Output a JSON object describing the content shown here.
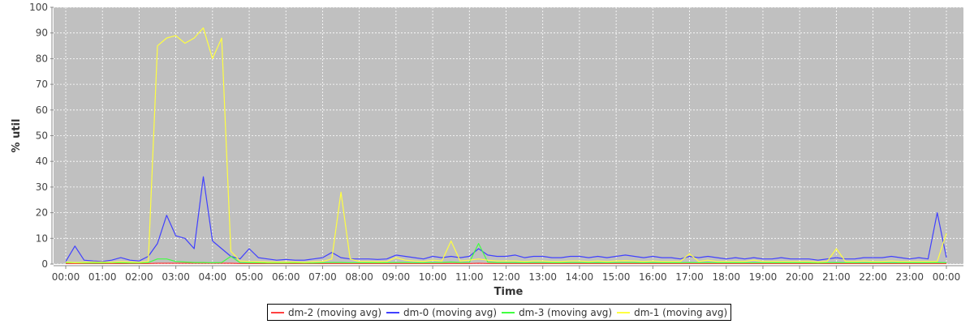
{
  "chart_data": {
    "type": "line",
    "title": "",
    "xlabel": "Time",
    "ylabel": "% util",
    "ylim": [
      0,
      100
    ],
    "yticks": [
      "0",
      "10",
      "20",
      "30",
      "40",
      "50",
      "60",
      "70",
      "80",
      "90",
      "100"
    ],
    "xticks": [
      "00:00",
      "01:00",
      "02:00",
      "03:00",
      "04:00",
      "05:00",
      "06:00",
      "07:00",
      "08:00",
      "09:00",
      "10:00",
      "11:00",
      "12:00",
      "13:00",
      "14:00",
      "15:00",
      "16:00",
      "17:00",
      "18:00",
      "19:00",
      "20:00",
      "21:00",
      "22:00",
      "23:00",
      "00:00"
    ],
    "grid": true,
    "legend_placement": "bottom",
    "x_interval": "15 min, 00:00 to 00:00 (next day)",
    "series": [
      {
        "name": "dm-2 (moving avg)",
        "color": "#ff4040",
        "values": [
          0.2,
          0.2,
          0.2,
          0.2,
          0.2,
          0.2,
          0.2,
          0.2,
          0.2,
          0.2,
          0.3,
          0.3,
          0.3,
          0.3,
          0.3,
          0.3,
          0.3,
          0.3,
          0.3,
          0.2,
          0.2,
          0.2,
          0.2,
          0.2,
          0.2,
          0.2,
          0.2,
          0.2,
          0.2,
          0.2,
          0.2,
          0.2,
          0.2,
          0.2,
          0.2,
          0.2,
          0.2,
          0.2,
          0.2,
          0.2,
          0.2,
          0.2,
          0.2,
          0.2,
          0.2,
          0.3,
          0.2,
          0.2,
          0.2,
          0.2,
          0.2,
          0.2,
          0.2,
          0.2,
          0.2,
          0.2,
          0.2,
          0.2,
          0.2,
          0.2,
          0.2,
          0.2,
          0.2,
          0.2,
          0.2,
          0.2,
          0.2,
          0.2,
          0.2,
          0.2,
          0.2,
          0.2,
          0.2,
          0.2,
          0.2,
          0.2,
          0.2,
          0.2,
          0.2,
          0.2,
          0.2,
          0.2,
          0.2,
          0.2,
          0.2,
          0.2,
          0.2,
          0.2,
          0.2,
          0.2,
          0.2,
          0.2,
          0.2,
          0.2,
          0.2,
          0.2,
          0.2
        ]
      },
      {
        "name": "dm-0 (moving avg)",
        "color": "#4040ff",
        "values": [
          1,
          7,
          1.5,
          1.2,
          1,
          1.5,
          2.5,
          1.5,
          1.2,
          3,
          8,
          19,
          11,
          10,
          6,
          34,
          9,
          6,
          3,
          2,
          6,
          2.5,
          2,
          1.5,
          1.8,
          1.5,
          1.5,
          2,
          2.5,
          4.5,
          2.5,
          2,
          2,
          2,
          1.8,
          2,
          3.5,
          3,
          2.5,
          2,
          3,
          2.5,
          3,
          2.5,
          3,
          6,
          3.5,
          3,
          3,
          3.5,
          2.5,
          3,
          3,
          2.5,
          2.5,
          3,
          3,
          2.5,
          3,
          2.5,
          3,
          3.5,
          3,
          2.5,
          3,
          2.5,
          2.5,
          2,
          3,
          2.5,
          3,
          2.5,
          2,
          2.5,
          2,
          2.5,
          2,
          2,
          2.5,
          2,
          2,
          2,
          1.5,
          2,
          2.5,
          2,
          2,
          2.5,
          2.5,
          2.5,
          3,
          2.5,
          2,
          2.5,
          2,
          20,
          2.5
        ]
      },
      {
        "name": "dm-3 (moving avg)",
        "color": "#40ff40",
        "values": [
          0.5,
          0.5,
          0.4,
          0.4,
          0.4,
          0.5,
          0.5,
          0.4,
          0.4,
          0.6,
          2,
          2,
          1,
          0.8,
          0.6,
          0.6,
          0.5,
          0.6,
          3,
          0.6,
          0.5,
          0.5,
          0.4,
          0.4,
          0.4,
          0.5,
          0.4,
          0.4,
          0.5,
          0.6,
          0.6,
          0.5,
          0.5,
          0.5,
          0.5,
          0.5,
          0.6,
          0.6,
          0.5,
          0.5,
          0.6,
          0.6,
          0.8,
          0.6,
          0.7,
          8,
          0.8,
          0.6,
          0.6,
          0.6,
          0.5,
          0.6,
          0.6,
          0.5,
          0.5,
          0.6,
          0.6,
          0.5,
          0.6,
          0.5,
          0.6,
          0.6,
          0.6,
          0.5,
          0.6,
          0.5,
          0.5,
          0.5,
          0.6,
          0.5,
          0.6,
          0.5,
          0.5,
          0.5,
          0.5,
          0.5,
          0.5,
          0.5,
          0.5,
          0.5,
          0.5,
          0.5,
          0.4,
          0.5,
          0.6,
          0.5,
          0.5,
          0.5,
          0.5,
          0.5,
          0.5,
          0.5,
          0.5,
          0.5,
          0.5,
          0.6,
          0.5
        ]
      },
      {
        "name": "dm-1 (moving avg)",
        "color": "#ffff40",
        "values": [
          0.8,
          0.6,
          0.7,
          0.8,
          0.8,
          0.7,
          0.9,
          0.8,
          0.7,
          1,
          85,
          88,
          89,
          86,
          88,
          92,
          80,
          88,
          5,
          1.2,
          1,
          0.9,
          0.8,
          0.8,
          0.8,
          0.8,
          0.7,
          0.9,
          1,
          2,
          28,
          2,
          1,
          1,
          0.9,
          1,
          2.5,
          1.5,
          1.2,
          1,
          1.5,
          1.2,
          9,
          1.2,
          1.5,
          2,
          1.5,
          1.2,
          1.2,
          1.2,
          1,
          1.2,
          1.2,
          1,
          1,
          1.2,
          1.2,
          1,
          1.2,
          1,
          1.2,
          1.3,
          1.2,
          1,
          1.2,
          1,
          1,
          1,
          4,
          1,
          1.5,
          1,
          1,
          1,
          1,
          1.5,
          1,
          1,
          1,
          1,
          1,
          1,
          0.8,
          1,
          6,
          1,
          1,
          1.2,
          1,
          1,
          1.2,
          1,
          1,
          1,
          1,
          1,
          12
        ]
      }
    ]
  }
}
